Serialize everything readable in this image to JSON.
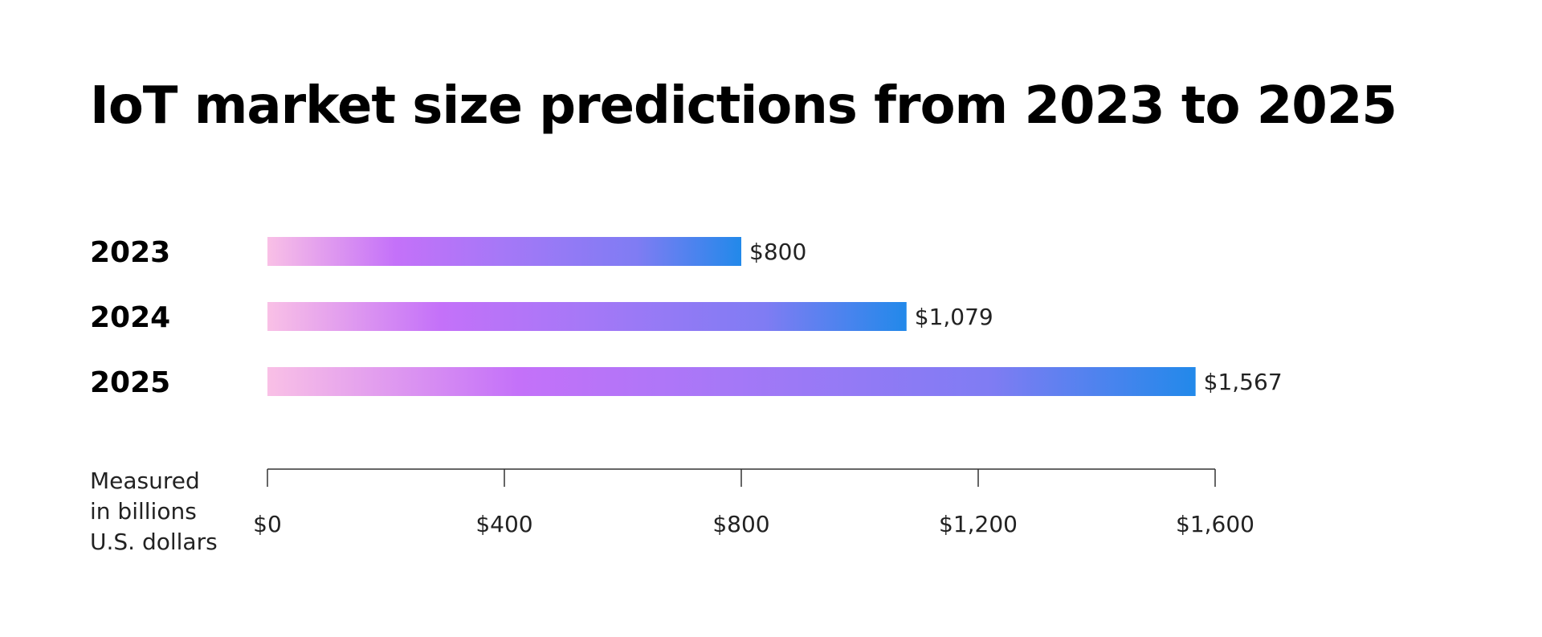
{
  "chart_data": {
    "type": "bar",
    "orientation": "horizontal",
    "title": "IoT market size predictions from 2023 to 2025",
    "categories": [
      "2023",
      "2024",
      "2025"
    ],
    "values": [
      800,
      1079,
      1567
    ],
    "value_labels": [
      "$800",
      "$1,079",
      "$1,567"
    ],
    "xlim": [
      0,
      1600
    ],
    "x_ticks": [
      0,
      400,
      800,
      1200,
      1600
    ],
    "x_tick_labels": [
      "$0",
      "$400",
      "$800",
      "$1,200",
      "$1,600"
    ],
    "axis_note_lines": [
      "Measured",
      "in billions",
      "U.S. dollars"
    ],
    "grid": false,
    "legend": "none",
    "colors": {
      "gradient": [
        "#f9c0e6",
        "#c471f9",
        "#a578f7",
        "#7f7cf3",
        "#2289ea"
      ],
      "axis": "#333333",
      "text": "#000000"
    }
  }
}
